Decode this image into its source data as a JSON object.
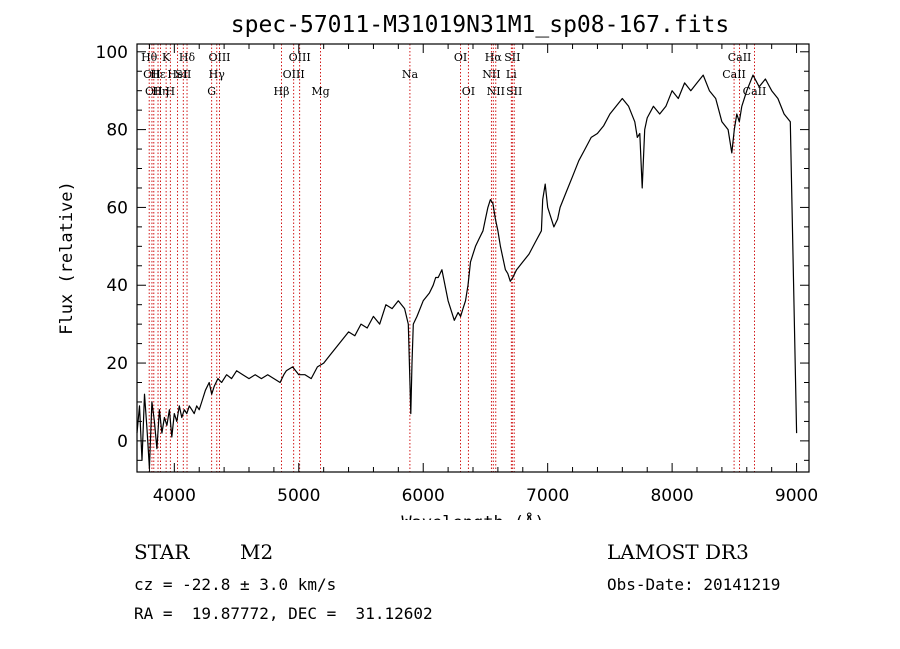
{
  "chart_data": {
    "type": "line",
    "title": "spec-57011-M31019N31M1_sp08-167.fits",
    "xlabel": "Wavelength (Å)",
    "ylabel": "Flux (relative)",
    "xlim": [
      3700,
      9100
    ],
    "ylim": [
      -8,
      102
    ],
    "x_ticks": [
      4000,
      5000,
      6000,
      7000,
      8000,
      9000
    ],
    "y_ticks": [
      0,
      20,
      40,
      60,
      80,
      100
    ],
    "line_color": "#000000",
    "marker_color": "#cc0000",
    "spectrum": {
      "x": [
        3700,
        3720,
        3740,
        3760,
        3780,
        3800,
        3820,
        3840,
        3860,
        3880,
        3900,
        3920,
        3940,
        3960,
        3980,
        4000,
        4020,
        4040,
        4060,
        4080,
        4100,
        4120,
        4140,
        4160,
        4180,
        4200,
        4220,
        4250,
        4280,
        4300,
        4320,
        4350,
        4380,
        4420,
        4460,
        4500,
        4550,
        4600,
        4650,
        4700,
        4750,
        4800,
        4850,
        4880,
        4900,
        4950,
        5000,
        5050,
        5100,
        5150,
        5200,
        5250,
        5300,
        5350,
        5400,
        5450,
        5500,
        5550,
        5600,
        5650,
        5700,
        5750,
        5800,
        5850,
        5880,
        5900,
        5910,
        5920,
        5950,
        6000,
        6050,
        6080,
        6100,
        6120,
        6150,
        6200,
        6250,
        6280,
        6300,
        6320,
        6340,
        6360,
        6380,
        6400,
        6420,
        6450,
        6480,
        6500,
        6520,
        6540,
        6560,
        6580,
        6600,
        6620,
        6640,
        6660,
        6680,
        6700,
        6720,
        6750,
        6800,
        6850,
        6900,
        6950,
        6960,
        6980,
        7000,
        7050,
        7080,
        7100,
        7150,
        7200,
        7250,
        7300,
        7350,
        7400,
        7450,
        7500,
        7550,
        7600,
        7650,
        7700,
        7720,
        7740,
        7760,
        7780,
        7800,
        7850,
        7900,
        7950,
        8000,
        8050,
        8100,
        8150,
        8200,
        8250,
        8300,
        8350,
        8400,
        8450,
        8480,
        8500,
        8520,
        8540,
        8560,
        8600,
        8650,
        8700,
        8750,
        8800,
        8850,
        8900,
        8950,
        9000
      ],
      "y": [
        2,
        9,
        -5,
        12,
        3,
        -7,
        10,
        5,
        -2,
        8,
        2,
        6,
        4,
        8,
        1,
        7,
        5,
        9,
        6,
        8,
        7,
        9,
        8,
        7,
        9,
        8,
        10,
        13,
        15,
        12,
        14,
        16,
        15,
        17,
        16,
        18,
        17,
        16,
        17,
        16,
        17,
        16,
        15,
        17,
        18,
        19,
        17,
        17,
        16,
        19,
        20,
        22,
        24,
        26,
        28,
        27,
        30,
        29,
        32,
        30,
        35,
        34,
        36,
        34,
        30,
        7,
        20,
        30,
        32,
        36,
        38,
        40,
        42,
        42,
        44,
        36,
        31,
        33,
        32,
        34,
        36,
        40,
        46,
        48,
        50,
        52,
        54,
        57,
        60,
        62,
        61,
        57,
        54,
        50,
        47,
        44,
        43,
        41,
        42,
        44,
        46,
        48,
        51,
        54,
        62,
        66,
        60,
        55,
        57,
        60,
        64,
        68,
        72,
        75,
        78,
        79,
        81,
        84,
        86,
        88,
        86,
        82,
        78,
        79,
        65,
        80,
        83,
        86,
        84,
        86,
        90,
        88,
        92,
        90,
        92,
        94,
        90,
        88,
        82,
        80,
        74,
        80,
        84,
        82,
        86,
        90,
        94,
        91,
        93,
        90,
        88,
        84,
        82,
        2
      ]
    },
    "line_markers": [
      {
        "x": 3798,
        "label": "Hθ",
        "row": 0
      },
      {
        "x": 3820,
        "label": "OII",
        "row": 1
      },
      {
        "x": 3835,
        "label": "OII",
        "row": 2
      },
      {
        "x": 3869,
        "label": "Hε",
        "row": 1
      },
      {
        "x": 3889,
        "label": "Hη",
        "row": 2
      },
      {
        "x": 3934,
        "label": "K",
        "row": 0
      },
      {
        "x": 3968,
        "label": "H",
        "row": 2
      },
      {
        "x": 4026,
        "label": "HeI",
        "row": 1
      },
      {
        "x": 4072,
        "label": "SII",
        "row": 1
      },
      {
        "x": 4102,
        "label": "Hδ",
        "row": 0
      },
      {
        "x": 4300,
        "label": "G",
        "row": 2
      },
      {
        "x": 4341,
        "label": "Hγ",
        "row": 1
      },
      {
        "x": 4363,
        "label": "OIII",
        "row": 0
      },
      {
        "x": 4861,
        "label": "Hβ",
        "row": 2
      },
      {
        "x": 4959,
        "label": "OIII",
        "row": 1
      },
      {
        "x": 5007,
        "label": "OIII",
        "row": 0
      },
      {
        "x": 5175,
        "label": "Mg",
        "row": 2
      },
      {
        "x": 5893,
        "label": "Na",
        "row": 1
      },
      {
        "x": 6300,
        "label": "OI",
        "row": 0
      },
      {
        "x": 6363,
        "label": "OI",
        "row": 2
      },
      {
        "x": 6548,
        "label": "NII",
        "row": 1
      },
      {
        "x": 6563,
        "label": "Hα",
        "row": 0
      },
      {
        "x": 6583,
        "label": "NII",
        "row": 2
      },
      {
        "x": 6708,
        "label": "Li",
        "row": 1
      },
      {
        "x": 6716,
        "label": "SII",
        "row": 0
      },
      {
        "x": 6731,
        "label": "SII",
        "row": 2
      },
      {
        "x": 8498,
        "label": "CaII",
        "row": 1
      },
      {
        "x": 8542,
        "label": "CaII",
        "row": 0
      },
      {
        "x": 8662,
        "label": "CaII",
        "row": 2
      }
    ]
  },
  "info": {
    "object_class": "STAR",
    "subclass": "M2",
    "velocity": "cz = -22.8 ± 3.0 km/s",
    "coords": "RA =  19.87772, DEC =  31.12602",
    "survey": "LAMOST DR3",
    "obs_date": "Obs-Date: 20141219"
  }
}
